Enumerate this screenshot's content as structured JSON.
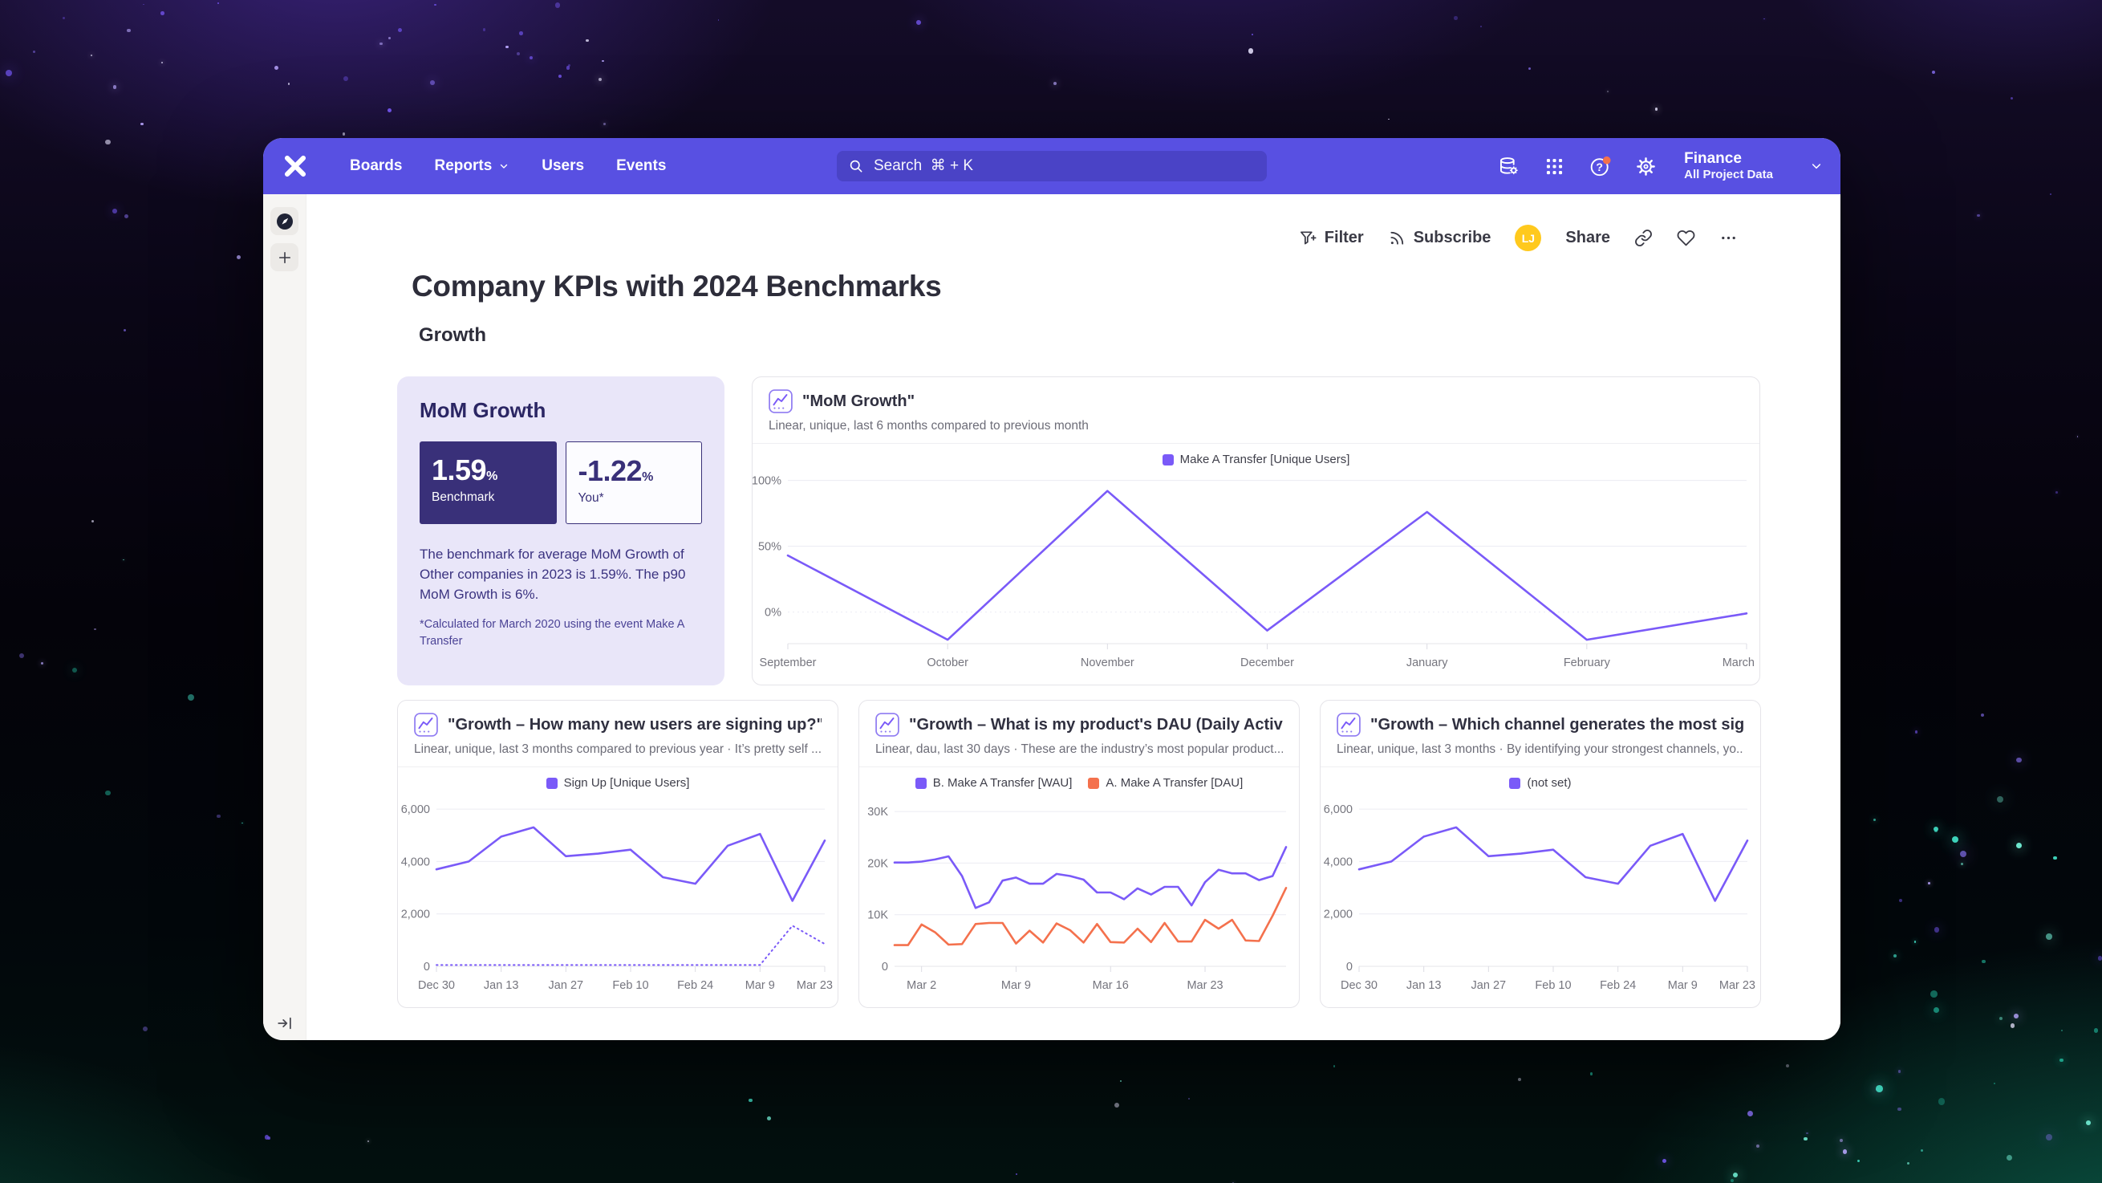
{
  "nav": {
    "items": [
      {
        "label": "Boards"
      },
      {
        "label": "Reports",
        "has_chevron": true
      },
      {
        "label": "Users"
      },
      {
        "label": "Events"
      }
    ],
    "search": {
      "placeholder": "Search  ⌘ + K"
    },
    "project": {
      "name": "Finance",
      "scope": "All Project Data"
    }
  },
  "toolbar": {
    "filter_label": "Filter",
    "subscribe_label": "Subscribe",
    "share_label": "Share",
    "avatar_initials": "LJ",
    "more_label": "..."
  },
  "board": {
    "title": "Company KPIs with 2024 Benchmarks",
    "section": "Growth"
  },
  "benchmark_card": {
    "title": "MoM Growth",
    "benchmark_value": "1.59",
    "benchmark_unit": "%",
    "benchmark_label": "Benchmark",
    "you_value": "-1.22",
    "you_unit": "%",
    "you_label": "You*",
    "description": "The benchmark for average MoM Growth of Other companies in 2023 is 1.59%. The p90 MoM Growth is 6%.",
    "footnote": "*Calculated for March 2020 using the event Make A Transfer"
  },
  "colors": {
    "nav_purple": "#5850E2",
    "search_pill": "#4A43C6",
    "line_purple": "#7A5AF8",
    "line_orange": "#F4714D",
    "avatar_yellow": "#FFC91D",
    "benchmark_navy": "#393079",
    "benchmark_lavender": "#E9E6F9",
    "help_badge": "#F4714D"
  },
  "charts": [
    {
      "title": "\"MoM Growth\"",
      "subtitle": "Linear, unique, last 6 months compared to previous month",
      "legend": [
        {
          "label": "Make A Transfer [Unique Users]",
          "color": "#7A5AF8"
        }
      ],
      "chart_data": {
        "type": "line",
        "x": [
          "September",
          "October",
          "November",
          "December",
          "January",
          "February",
          "March"
        ],
        "tick_indices": [
          0,
          1,
          2,
          3,
          4,
          5,
          6
        ],
        "series": [
          {
            "name": "Make A Transfer [Unique Users]",
            "color": "#7A5AF8",
            "style": "solid",
            "values": [
              43,
              -21,
              92,
              -14,
              76,
              -21,
              -1
            ]
          }
        ],
        "y_ticks": [
          {
            "v": 0,
            "label": "0%",
            "dotted": true
          },
          {
            "v": 50,
            "label": "50%"
          },
          {
            "v": 100,
            "label": "100%"
          }
        ],
        "ylim": [
          -24,
          104
        ],
        "grid": true,
        "legend_position": "top",
        "margin_left": 44
      }
    },
    {
      "title": "\"Growth – How many new users are signing up?\"",
      "subtitle": "Linear, unique, last 3 months compared to previous year · It’s pretty self ...",
      "legend": [
        {
          "label": "Sign Up [Unique Users]",
          "color": "#7A5AF8"
        }
      ],
      "chart_data": {
        "type": "line",
        "x": [
          "Dec 30",
          "Jan 6",
          "Jan 13",
          "Jan 20",
          "Jan 27",
          "Feb 3",
          "Feb 10",
          "Feb 17",
          "Feb 24",
          "Mar 2",
          "Mar 9",
          "Mar 16",
          "Mar 23"
        ],
        "tick_indices": [
          0,
          2,
          4,
          6,
          8,
          10,
          12
        ],
        "series": [
          {
            "name": "Sign Up [Unique Users]",
            "color": "#7A5AF8",
            "style": "solid",
            "values": [
              3700,
              4000,
              4950,
              5300,
              4200,
              4300,
              4450,
              3400,
              3150,
              4600,
              5050,
              2500,
              4800
            ]
          },
          {
            "name": "Sign Up [Unique Users] previous year",
            "color": "#7A5AF8",
            "style": "dotted",
            "values": [
              50,
              50,
              50,
              50,
              50,
              50,
              50,
              50,
              50,
              50,
              50,
              1550,
              850
            ]
          }
        ],
        "y_ticks": [
          {
            "v": 0,
            "label": "0"
          },
          {
            "v": 2000,
            "label": "2,000"
          },
          {
            "v": 4000,
            "label": "4,000"
          },
          {
            "v": 6000,
            "label": "6,000"
          }
        ],
        "ylim": [
          0,
          6400
        ],
        "grid": true,
        "legend_position": "top",
        "margin_left": 48
      }
    },
    {
      "title": "\"Growth – What is my product's DAU (Daily Active Us...",
      "subtitle": "Linear, dau, last 30 days · These are the industry’s most popular product...",
      "legend": [
        {
          "label": "B. Make A Transfer [WAU]",
          "color": "#7A5AF8"
        },
        {
          "label": "A. Make A Transfer [DAU]",
          "color": "#F4714D"
        }
      ],
      "chart_data": {
        "type": "line",
        "x": [
          "Feb 29",
          "Mar 1",
          "Mar 2",
          "Mar 3",
          "Mar 4",
          "Mar 5",
          "Mar 6",
          "Mar 7",
          "Mar 8",
          "Mar 9",
          "Mar 10",
          "Mar 11",
          "Mar 12",
          "Mar 13",
          "Mar 14",
          "Mar 15",
          "Mar 16",
          "Mar 17",
          "Mar 18",
          "Mar 19",
          "Mar 20",
          "Mar 21",
          "Mar 22",
          "Mar 23",
          "Mar 24",
          "Mar 25",
          "Mar 26",
          "Mar 27",
          "Mar 28",
          "Mar 29"
        ],
        "tick_indices": [
          2,
          9,
          16,
          23
        ],
        "series": [
          {
            "name": "B. Make A Transfer [WAU]",
            "color": "#7A5AF8",
            "style": "solid",
            "values": [
              20100,
              20100,
              20300,
              20700,
              21300,
              17500,
              11300,
              12400,
              16600,
              17200,
              16000,
              16000,
              17900,
              17500,
              16800,
              14300,
              14300,
              13000,
              15100,
              13900,
              15400,
              15400,
              11800,
              16300,
              18700,
              18000,
              18000,
              16700,
              17500,
              23100
            ]
          },
          {
            "name": "A. Make A Transfer [DAU]",
            "color": "#F4714D",
            "style": "solid",
            "values": [
              4100,
              4100,
              8100,
              6600,
              4200,
              4300,
              8200,
              8400,
              8400,
              4400,
              6900,
              4600,
              8300,
              7000,
              4600,
              8200,
              4700,
              4600,
              7300,
              4700,
              8400,
              4800,
              4800,
              9000,
              7300,
              9000,
              5000,
              4900,
              9800,
              15200
            ]
          }
        ],
        "y_ticks": [
          {
            "v": 0,
            "label": "0"
          },
          {
            "v": 10000,
            "label": "10K"
          },
          {
            "v": 20000,
            "label": "20K"
          },
          {
            "v": 30000,
            "label": "30K"
          }
        ],
        "ylim": [
          0,
          32500
        ],
        "grid": true,
        "legend_position": "top",
        "margin_left": 44
      }
    },
    {
      "title": "\"Growth – Which channel generates the most signup...",
      "subtitle": "Linear, unique, last 3 months · By identifying your strongest channels, yo...",
      "legend": [
        {
          "label": "(not set)",
          "color": "#7A5AF8"
        }
      ],
      "chart_data": {
        "type": "line",
        "x": [
          "Dec 30",
          "Jan 6",
          "Jan 13",
          "Jan 20",
          "Jan 27",
          "Feb 3",
          "Feb 10",
          "Feb 17",
          "Feb 24",
          "Mar 2",
          "Mar 9",
          "Mar 16",
          "Mar 23"
        ],
        "tick_indices": [
          0,
          2,
          4,
          6,
          8,
          10,
          12
        ],
        "series": [
          {
            "name": "(not set)",
            "color": "#7A5AF8",
            "style": "solid",
            "values": [
              3700,
              4000,
              4950,
              5300,
              4200,
              4300,
              4450,
              3400,
              3150,
              4600,
              5050,
              2500,
              4800
            ]
          }
        ],
        "y_ticks": [
          {
            "v": 0,
            "label": "0"
          },
          {
            "v": 2000,
            "label": "2,000"
          },
          {
            "v": 4000,
            "label": "4,000"
          },
          {
            "v": 6000,
            "label": "6,000"
          }
        ],
        "ylim": [
          0,
          6400
        ],
        "grid": true,
        "legend_position": "top",
        "margin_left": 48
      }
    }
  ]
}
